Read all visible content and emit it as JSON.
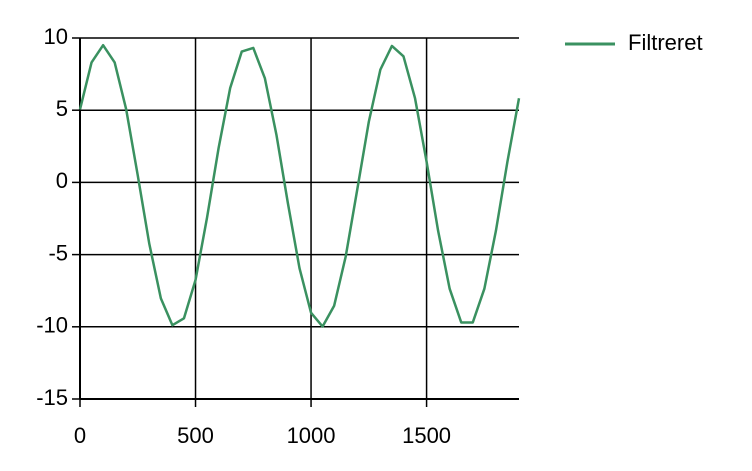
{
  "chart_data": {
    "type": "line",
    "x": [
      0,
      50,
      100,
      150,
      200,
      250,
      300,
      350,
      400,
      450,
      500,
      550,
      600,
      650,
      700,
      750,
      800,
      850,
      900,
      950,
      1000,
      1050,
      1100,
      1150,
      1200,
      1250,
      1300,
      1350,
      1400,
      1450,
      1500,
      1550,
      1600,
      1650,
      1700,
      1750,
      1800,
      1850,
      1900
    ],
    "series": [
      {
        "name": "Filtreret",
        "color": "#3a9160",
        "values": [
          5.05,
          8.31,
          9.5,
          8.31,
          5.05,
          0.48,
          -4.26,
          -8.03,
          -9.89,
          -9.41,
          -6.76,
          -2.42,
          2.39,
          6.54,
          9.06,
          9.31,
          7.22,
          3.31,
          -1.46,
          -5.94,
          -9.03,
          -9.98,
          -8.54,
          -5.13,
          -0.49,
          4.2,
          7.81,
          9.45,
          8.73,
          5.83,
          1.44,
          -3.36,
          -7.37,
          -9.7,
          -9.7,
          -7.37,
          -3.36,
          1.44,
          5.83
        ]
      }
    ],
    "xlim": [
      0,
      1900
    ],
    "xticks": [
      0,
      500,
      1000,
      1500
    ],
    "ylim": [
      -15,
      10
    ],
    "yticks": [
      -15,
      -10,
      -5,
      0,
      5,
      10
    ],
    "grid": true,
    "legend": "right"
  }
}
